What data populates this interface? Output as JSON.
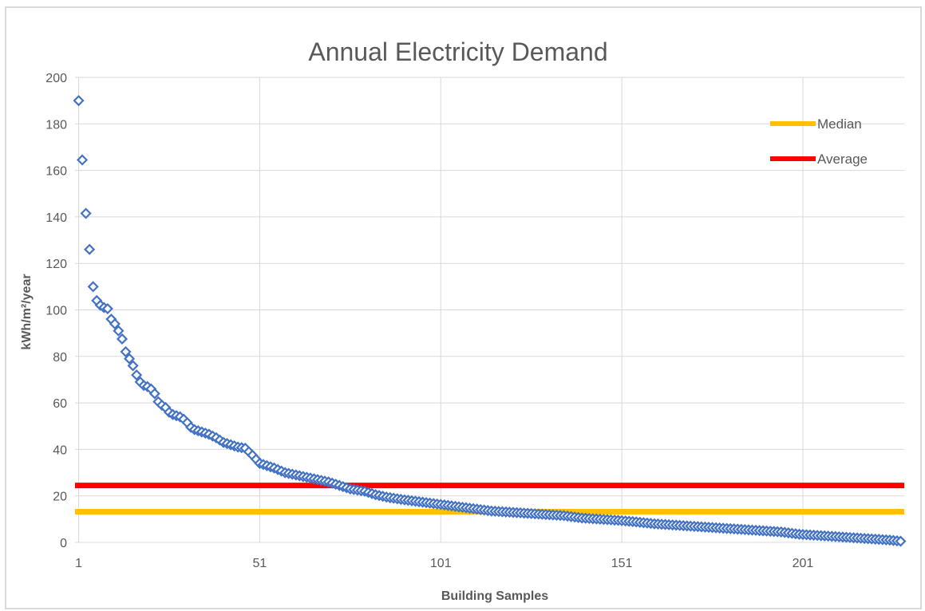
{
  "chart_data": {
    "type": "scatter",
    "title": "Annual Electricity Demand",
    "xlabel": "Building Samples",
    "ylabel": "kWh/m²/year",
    "xlim": [
      0,
      229
    ],
    "ylim": [
      0,
      200
    ],
    "yticks": [
      "0",
      "20",
      "40",
      "60",
      "80",
      "100",
      "120",
      "140",
      "160",
      "180",
      "200"
    ],
    "xticks": [
      "1",
      "51",
      "101",
      "151",
      "201"
    ],
    "xtick_values": [
      1,
      51,
      101,
      151,
      201
    ],
    "grid": true,
    "legend_position": "top-right",
    "colors": {
      "series": "#4472c4",
      "median": "#ffc000",
      "average": "#ff0000",
      "grid": "#d9d9d9"
    },
    "reference_lines": [
      {
        "name": "Median",
        "value": 13.2
      },
      {
        "name": "Average",
        "value": 24.5
      }
    ],
    "anchors": [
      [
        1,
        190
      ],
      [
        2,
        164.5
      ],
      [
        3,
        141.5
      ],
      [
        4,
        126
      ],
      [
        5,
        110
      ],
      [
        6,
        104
      ],
      [
        7,
        102
      ],
      [
        8,
        101
      ],
      [
        9,
        100.5
      ],
      [
        10,
        96
      ],
      [
        11,
        94
      ],
      [
        12,
        91
      ],
      [
        13,
        87.5
      ],
      [
        14,
        82
      ],
      [
        15,
        79
      ],
      [
        16,
        76
      ],
      [
        17,
        72
      ],
      [
        18,
        69
      ],
      [
        19,
        67.5
      ],
      [
        20,
        67
      ],
      [
        21,
        66
      ],
      [
        22,
        64
      ],
      [
        23,
        60.5
      ],
      [
        24,
        59
      ],
      [
        25,
        58
      ],
      [
        26,
        56
      ],
      [
        27,
        55
      ],
      [
        28,
        54.5
      ],
      [
        29,
        54
      ],
      [
        30,
        53
      ],
      [
        31,
        51.5
      ],
      [
        32,
        49.5
      ],
      [
        33,
        48.5
      ],
      [
        35,
        47.5
      ],
      [
        37,
        46.5
      ],
      [
        39,
        45
      ],
      [
        41,
        43
      ],
      [
        43,
        42
      ],
      [
        45,
        41
      ],
      [
        47,
        40.5
      ],
      [
        49,
        37.5
      ],
      [
        51,
        34
      ],
      [
        53,
        33
      ],
      [
        55,
        32
      ],
      [
        58,
        30
      ],
      [
        61,
        29
      ],
      [
        64,
        28
      ],
      [
        67,
        27
      ],
      [
        70,
        26
      ],
      [
        73,
        24.5
      ],
      [
        76,
        23
      ],
      [
        80,
        22
      ],
      [
        83,
        20.5
      ],
      [
        86,
        19.5
      ],
      [
        90,
        18.5
      ],
      [
        95,
        17.5
      ],
      [
        100,
        16.5
      ],
      [
        105,
        15.5
      ],
      [
        110,
        14.5
      ],
      [
        115,
        13.5
      ],
      [
        120,
        13
      ],
      [
        125,
        12.5
      ],
      [
        130,
        12
      ],
      [
        135,
        11.5
      ],
      [
        140,
        10.5
      ],
      [
        145,
        10
      ],
      [
        150,
        9.5
      ],
      [
        155,
        8.8
      ],
      [
        160,
        8
      ],
      [
        165,
        7.5
      ],
      [
        170,
        7
      ],
      [
        175,
        6.5
      ],
      [
        180,
        6
      ],
      [
        185,
        5.5
      ],
      [
        190,
        5
      ],
      [
        195,
        4.5
      ],
      [
        200,
        3.5
      ],
      [
        205,
        3
      ],
      [
        210,
        2.5
      ],
      [
        215,
        2
      ],
      [
        220,
        1.5
      ],
      [
        225,
        1
      ],
      [
        228,
        0.5
      ]
    ]
  }
}
